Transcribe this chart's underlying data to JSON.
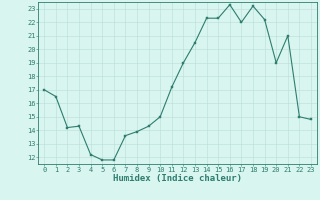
{
  "title": "",
  "xlabel": "Humidex (Indice chaleur)",
  "ylabel": "",
  "x_values": [
    0,
    1,
    2,
    3,
    4,
    5,
    6,
    7,
    8,
    9,
    10,
    11,
    12,
    13,
    14,
    15,
    16,
    17,
    18,
    19,
    20,
    21,
    22,
    23
  ],
  "y_values": [
    17,
    16.5,
    14.2,
    14.3,
    12.2,
    11.8,
    11.8,
    13.6,
    13.9,
    14.3,
    15.0,
    17.2,
    19.0,
    20.5,
    22.3,
    22.3,
    23.3,
    22.0,
    23.2,
    22.2,
    19.0,
    21.0,
    15.0,
    14.8
  ],
  "line_color": "#2e7d6e",
  "marker_color": "#2e7d6e",
  "bg_color": "#d8f5f0",
  "grid_color": "#b8ddd8",
  "ylim_min": 11.5,
  "ylim_max": 23.5,
  "xlim_min": -0.5,
  "xlim_max": 23.5,
  "yticks": [
    12,
    13,
    14,
    15,
    16,
    17,
    18,
    19,
    20,
    21,
    22,
    23
  ],
  "xticks": [
    0,
    1,
    2,
    3,
    4,
    5,
    6,
    7,
    8,
    9,
    10,
    11,
    12,
    13,
    14,
    15,
    16,
    17,
    18,
    19,
    20,
    21,
    22,
    23
  ],
  "tick_label_fontsize": 5.0,
  "xlabel_fontsize": 6.5,
  "axis_color": "#2e7d6e",
  "linewidth": 0.8,
  "markersize": 1.8
}
